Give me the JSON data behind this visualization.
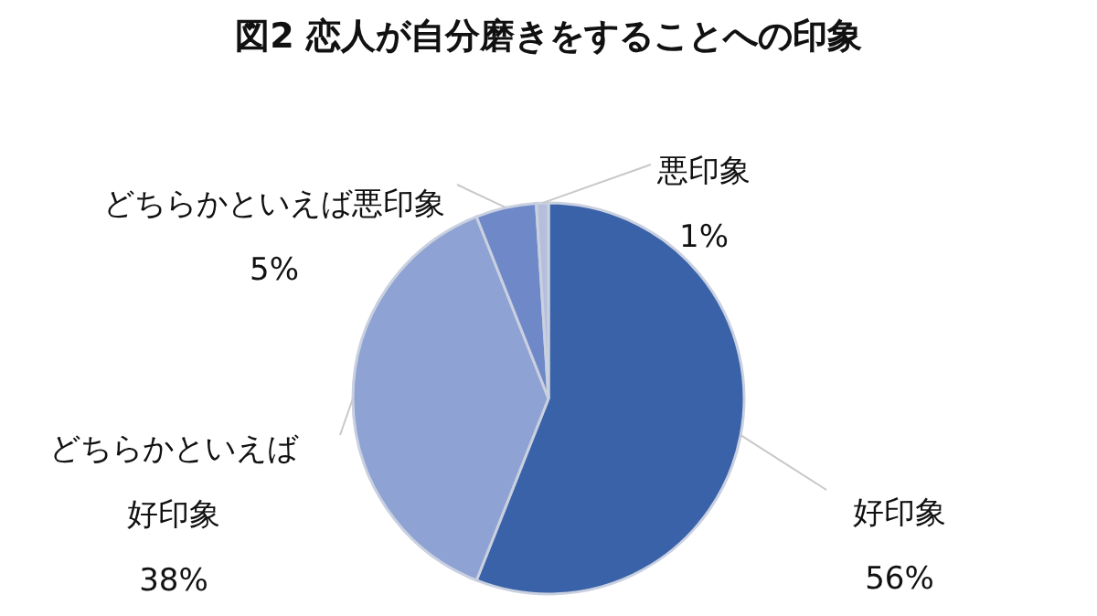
{
  "chart_data": {
    "type": "pie",
    "title": "図2 恋人が自分磨きをすることへの印象",
    "categories": [
      "好印象",
      "どちらかといえば好印象",
      "どちらかといえば悪印象",
      "悪印象"
    ],
    "values": [
      56,
      38,
      5,
      1
    ],
    "value_labels": [
      "56%",
      "38%",
      "5%",
      "1%"
    ],
    "colors": [
      "#3a62a8",
      "#8ea2d3",
      "#6e88c8",
      "#b5bfdc"
    ],
    "legend": false
  }
}
